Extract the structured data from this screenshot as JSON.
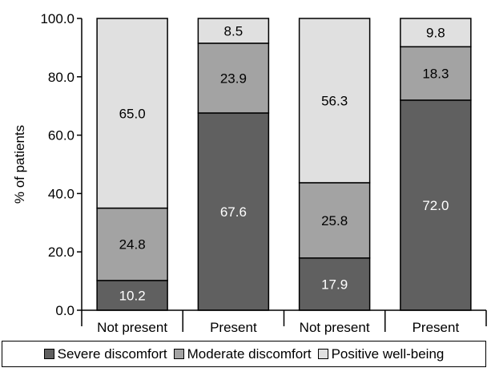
{
  "chart_data": {
    "type": "bar",
    "stacked": true,
    "categories": [
      "Not present",
      "Present",
      "Not present",
      "Present"
    ],
    "series": [
      {
        "name": "Severe discomfort",
        "color": "#606060",
        "label_color": "#ffffff",
        "values": [
          10.2,
          67.6,
          17.9,
          72.0
        ]
      },
      {
        "name": "Moderate discomfort",
        "color": "#a3a3a3",
        "label_color": "#000000",
        "values": [
          24.8,
          23.9,
          25.8,
          18.3
        ]
      },
      {
        "name": "Positive well-being",
        "color": "#e0e0e0",
        "label_color": "#000000",
        "values": [
          65.0,
          8.5,
          56.3,
          9.8
        ]
      }
    ],
    "ylabel": "% of patients",
    "ylim": [
      0,
      100
    ],
    "yticks": [
      "0.0",
      "20.0",
      "40.0",
      "60.0",
      "80.0",
      "100.0"
    ],
    "grid": false,
    "legend": "bottom"
  }
}
